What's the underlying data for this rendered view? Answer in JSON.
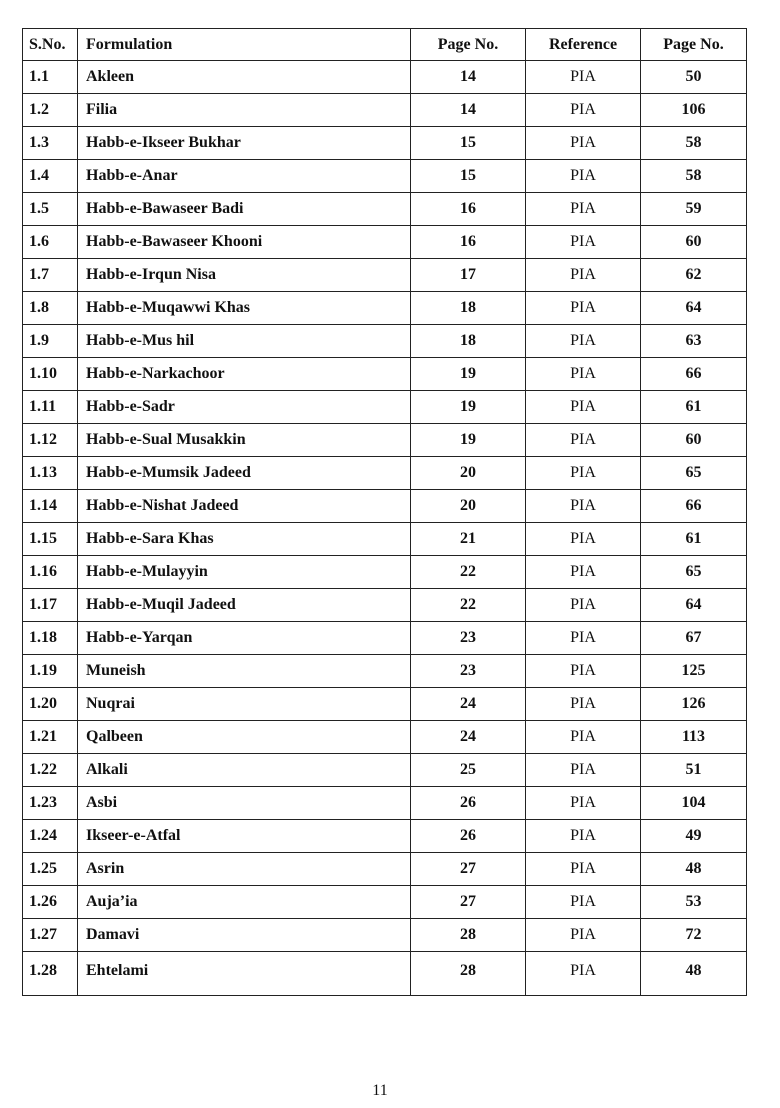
{
  "table": {
    "headers": [
      "S.No.",
      "Formulation",
      "Page No.",
      "Reference",
      "Page No."
    ],
    "rows": [
      [
        "1.1",
        "Akleen",
        "14",
        "PIA",
        "50"
      ],
      [
        "1.2",
        "Filia",
        "14",
        "PIA",
        "106"
      ],
      [
        "1.3",
        "Habb-e-Ikseer Bukhar",
        "15",
        "PIA",
        "58"
      ],
      [
        "1.4",
        "Habb-e-Anar",
        "15",
        "PIA",
        "58"
      ],
      [
        "1.5",
        "Habb-e-Bawaseer Badi",
        "16",
        "PIA",
        "59"
      ],
      [
        "1.6",
        "Habb-e-Bawaseer Khooni",
        "16",
        "PIA",
        "60"
      ],
      [
        "1.7",
        "Habb-e-Irqun Nisa",
        "17",
        "PIA",
        "62"
      ],
      [
        "1.8",
        "Habb-e-Muqawwi Khas",
        "18",
        "PIA",
        "64"
      ],
      [
        "1.9",
        "Habb-e-Mus hil",
        "18",
        "PIA",
        "63"
      ],
      [
        "1.10",
        "Habb-e-Narkachoor",
        "19",
        "PIA",
        "66"
      ],
      [
        "1.11",
        "Habb-e-Sadr",
        "19",
        "PIA",
        "61"
      ],
      [
        "1.12",
        "Habb-e-Sual Musakkin",
        "19",
        "PIA",
        "60"
      ],
      [
        "1.13",
        "Habb-e-Mumsik Jadeed",
        "20",
        "PIA",
        "65"
      ],
      [
        "1.14",
        "Habb-e-Nishat Jadeed",
        "20",
        "PIA",
        "66"
      ],
      [
        "1.15",
        "Habb-e-Sara Khas",
        "21",
        "PIA",
        "61"
      ],
      [
        "1.16",
        "Habb-e-Mulayyin",
        "22",
        "PIA",
        "65"
      ],
      [
        "1.17",
        "Habb-e-Muqil Jadeed",
        "22",
        "PIA",
        "64"
      ],
      [
        "1.18",
        "Habb-e-Yarqan",
        "23",
        "PIA",
        "67"
      ],
      [
        "1.19",
        "Muneish",
        "23",
        "PIA",
        "125"
      ],
      [
        "1.20",
        "Nuqrai",
        "24",
        "PIA",
        "126"
      ],
      [
        "1.21",
        "Qalbeen",
        "24",
        "PIA",
        "113"
      ],
      [
        "1.22",
        "Alkali",
        "25",
        "PIA",
        "51"
      ],
      [
        "1.23",
        "Asbi",
        "26",
        "PIA",
        "104"
      ],
      [
        "1.24",
        "Ikseer-e-Atfal",
        "26",
        "PIA",
        "49"
      ],
      [
        "1.25",
        "Asrin",
        "27",
        "PIA",
        "48"
      ],
      [
        "1.26",
        "Auja’ia",
        "27",
        "PIA",
        "53"
      ],
      [
        "1.27",
        "Damavi",
        "28",
        "PIA",
        "72"
      ],
      [
        "1.28",
        "Ehtelami",
        "28",
        "PIA",
        "48"
      ]
    ]
  },
  "footer": {
    "page_number": "11"
  }
}
